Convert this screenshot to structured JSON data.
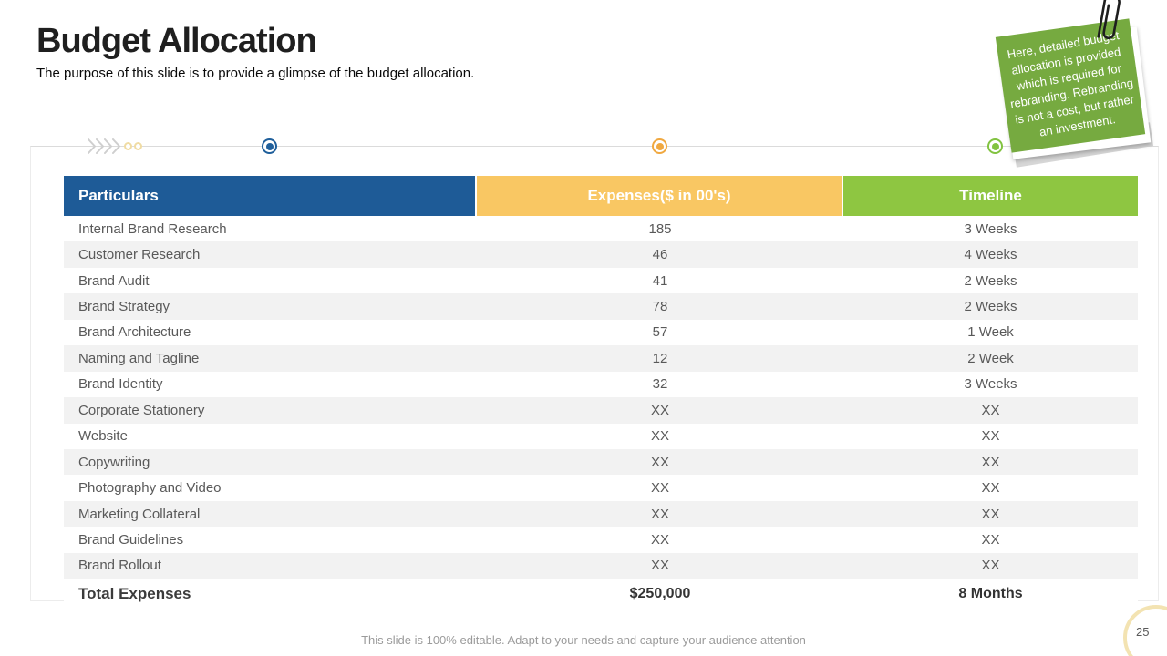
{
  "slide": {
    "title": "Budget Allocation",
    "subtitle": "The purpose of this slide is to provide a glimpse of the budget allocation.",
    "footer": "This slide is 100% editable. Adapt to your needs and capture your audience attention",
    "page_number": "25"
  },
  "sticky_note": {
    "text": "Here, detailed budget allocation is provided which is required for rebranding. Rebranding is not a cost, but rather an investment.",
    "color": "#76aa40"
  },
  "decorations": {
    "dots": [
      {
        "name": "blue-dot",
        "color": "#1f5f9b"
      },
      {
        "name": "yellow-dot",
        "color": "#f0a840"
      },
      {
        "name": "green-dot",
        "color": "#82c341"
      }
    ]
  },
  "table": {
    "columns": [
      {
        "label": "Particulars",
        "color": "#1e5b97"
      },
      {
        "label": "Expenses($ in 00's)",
        "color": "#f9c763"
      },
      {
        "label": "Timeline",
        "color": "#8ec641"
      }
    ],
    "rows": [
      [
        "Internal Brand Research",
        "185",
        "3 Weeks"
      ],
      [
        "Customer Research",
        "46",
        "4 Weeks"
      ],
      [
        "Brand Audit",
        "41",
        "2 Weeks"
      ],
      [
        "Brand Strategy",
        "78",
        "2 Weeks"
      ],
      [
        "Brand Architecture",
        "57",
        "1 Week"
      ],
      [
        "Naming and Tagline",
        "12",
        "2 Week"
      ],
      [
        "Brand Identity",
        "32",
        "3 Weeks"
      ],
      [
        "Corporate Stationery",
        "XX",
        "XX"
      ],
      [
        "Website",
        "XX",
        "XX"
      ],
      [
        "Copywriting",
        "XX",
        "XX"
      ],
      [
        "Photography and Video",
        "XX",
        "XX"
      ],
      [
        "Marketing Collateral",
        "XX",
        "XX"
      ],
      [
        "Brand Guidelines",
        "XX",
        "XX"
      ],
      [
        "Brand Rollout",
        "XX",
        "XX"
      ]
    ],
    "total": [
      "Total Expenses",
      "$250,000",
      "8 Months"
    ]
  }
}
